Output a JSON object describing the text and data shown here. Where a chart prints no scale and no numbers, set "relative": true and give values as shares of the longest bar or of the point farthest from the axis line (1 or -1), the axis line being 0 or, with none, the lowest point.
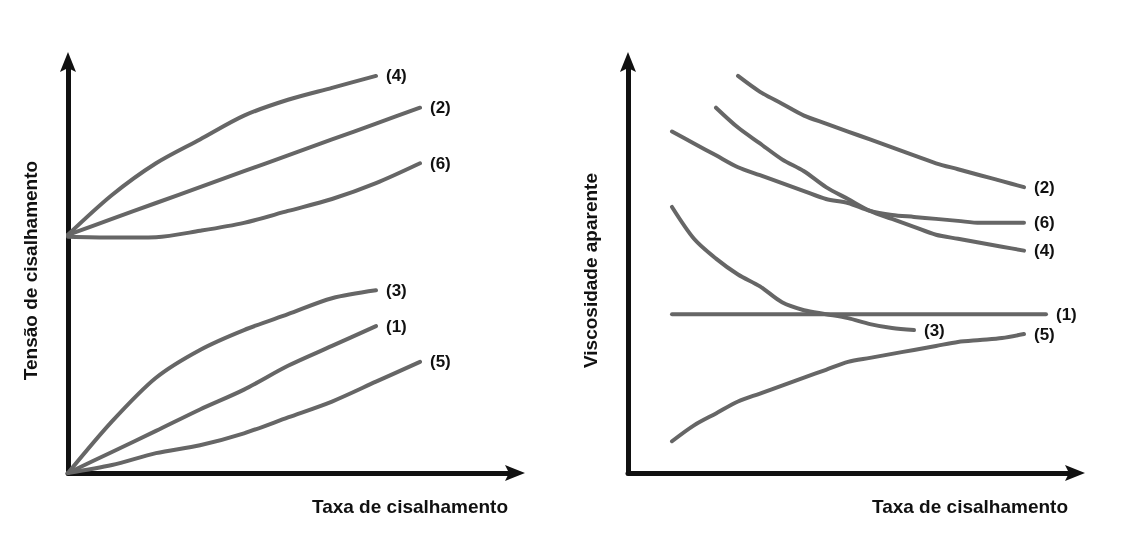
{
  "chart_data": [
    {
      "type": "line",
      "relative": true,
      "xlabel": "Taxa de cisalhamento",
      "ylabel": "Tensão de cisalhamento",
      "grid": false,
      "legend": false,
      "marker": "none",
      "line_style": "solid",
      "categories": [
        null,
        null,
        null,
        null,
        null,
        null,
        null,
        null,
        null,
        null,
        null
      ],
      "series": [
        {
          "name": "(4)",
          "color": "#666666",
          "values": [
            0.6,
            0.7,
            0.78,
            0.84,
            0.9,
            0.94,
            0.97,
            1,
            null,
            null,
            null
          ]
        },
        {
          "name": "(2)",
          "color": "#666666",
          "values": [
            0.6,
            0.64,
            0.68,
            0.72,
            0.76,
            0.8,
            0.84,
            0.88,
            0.92,
            null,
            null
          ]
        },
        {
          "name": "(6)",
          "color": "#666666",
          "values": [
            0.595,
            0.593,
            0.594,
            0.61,
            0.63,
            0.66,
            0.69,
            0.73,
            0.78,
            null,
            null
          ]
        },
        {
          "name": "(3)",
          "color": "#666666",
          "values": [
            0,
            0.13,
            0.24,
            0.31,
            0.36,
            0.4,
            0.44,
            0.46,
            null,
            null,
            null
          ]
        },
        {
          "name": "(1)",
          "color": "#666666",
          "values": [
            0,
            0.053,
            0.106,
            0.16,
            0.21,
            0.27,
            0.32,
            0.37,
            null,
            null,
            null
          ]
        },
        {
          "name": "(5)",
          "color": "#666666",
          "values": [
            0,
            0.02,
            0.05,
            0.07,
            0.1,
            0.14,
            0.18,
            0.23,
            0.28,
            null,
            null
          ]
        }
      ]
    },
    {
      "type": "line",
      "relative": true,
      "xlabel": "Taxa de cisalhamento",
      "ylabel": "Viscosidade aparente",
      "grid": false,
      "legend": false,
      "marker": "none",
      "line_style": "solid",
      "categories": [
        null,
        null,
        null,
        null,
        null,
        null,
        null,
        null,
        null,
        null,
        null,
        null,
        null,
        null,
        null,
        null,
        null,
        null,
        null,
        null,
        null
      ],
      "series": [
        {
          "name": "(2)",
          "color": "#666666",
          "values": [
            null,
            null,
            null,
            null,
            null,
            1,
            0.96,
            0.93,
            0.9,
            0.88,
            0.86,
            0.84,
            0.82,
            0.8,
            0.78,
            0.765,
            0.75,
            0.735,
            0.72,
            null,
            null
          ]
        },
        {
          "name": "(4)",
          "color": "#666666",
          "values": [
            null,
            null,
            null,
            null,
            0.92,
            0.87,
            0.83,
            0.79,
            0.76,
            0.72,
            0.69,
            0.66,
            0.64,
            0.62,
            0.6,
            0.59,
            0.58,
            0.57,
            0.56,
            null,
            null
          ]
        },
        {
          "name": "(6)",
          "color": "#666666",
          "values": [
            null,
            null,
            0.86,
            0.83,
            0.8,
            0.77,
            0.75,
            0.73,
            0.71,
            0.69,
            0.68,
            0.66,
            0.65,
            0.645,
            0.64,
            0.635,
            0.63,
            0.63,
            0.63,
            null,
            null
          ]
        },
        {
          "name": "(3)",
          "color": "#666666",
          "values": [
            null,
            null,
            0.67,
            0.59,
            0.54,
            0.5,
            0.47,
            0.43,
            0.41,
            0.4,
            0.39,
            0.375,
            0.365,
            0.36,
            null,
            null,
            null,
            null,
            null,
            null,
            null
          ]
        },
        {
          "name": "(1)",
          "color": "#666666",
          "values": [
            null,
            null,
            0.4,
            0.4,
            0.4,
            0.4,
            0.4,
            0.4,
            0.4,
            0.4,
            0.4,
            0.4,
            0.4,
            0.4,
            0.4,
            0.4,
            0.4,
            0.4,
            0.4,
            0.4,
            null
          ]
        },
        {
          "name": "(5)",
          "color": "#666666",
          "values": [
            null,
            null,
            0.08,
            0.12,
            0.15,
            0.18,
            0.2,
            0.22,
            0.24,
            0.26,
            0.28,
            0.29,
            0.3,
            0.31,
            0.32,
            0.33,
            0.335,
            0.34,
            0.35,
            null,
            null
          ]
        }
      ]
    }
  ]
}
